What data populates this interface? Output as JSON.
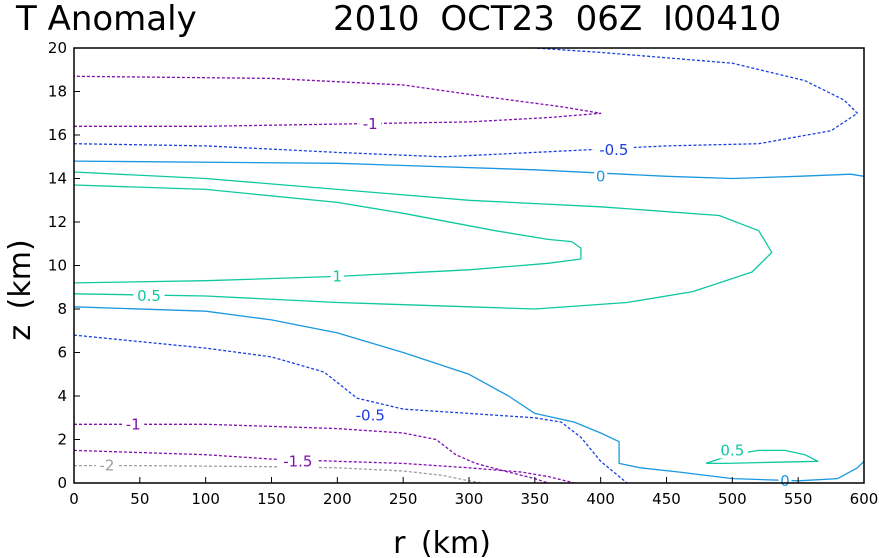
{
  "chart_data": {
    "type": "contour",
    "title_left": "T Anomaly",
    "title_right": "2010 OCT23 06Z   I00410",
    "xlabel": "r (km)",
    "ylabel": "z (km)",
    "xlim": [
      0,
      600
    ],
    "ylim": [
      0,
      20
    ],
    "xticks": [
      "0",
      "50",
      "100",
      "150",
      "200",
      "250",
      "300",
      "350",
      "400",
      "450",
      "500",
      "550",
      "600"
    ],
    "yticks": [
      "0",
      "2",
      "4",
      "6",
      "8",
      "10",
      "12",
      "14",
      "16",
      "18",
      "20"
    ],
    "colors": {
      "pos1": "#10c8a0",
      "pos05": "#10c8a0",
      "zero": "#1a98e0",
      "neg05": "#1a40e0",
      "neg1": "#8010b0",
      "neg15": "#8010b0",
      "neg2": "#a0a0a0"
    },
    "contours": [
      {
        "id": "c-pos1",
        "level": 1,
        "label": "1",
        "color_key": "pos1",
        "dashed": false,
        "points": [
          [
            0,
            9.2
          ],
          [
            100,
            9.3
          ],
          [
            200,
            9.5
          ],
          [
            300,
            9.8
          ],
          [
            360,
            10.1
          ],
          [
            385,
            10.3
          ],
          [
            385,
            10.8
          ],
          [
            378,
            11.1
          ],
          [
            360,
            11.2
          ],
          [
            320,
            11.6
          ],
          [
            250,
            12.4
          ],
          [
            200,
            12.9
          ],
          [
            100,
            13.5
          ],
          [
            0,
            13.7
          ]
        ],
        "label_at": [
          200,
          9.5
        ]
      },
      {
        "id": "c-pos05",
        "level": 0.5,
        "label": "0.5",
        "color_key": "pos05",
        "dashed": false,
        "points": [
          [
            0,
            8.7
          ],
          [
            100,
            8.6
          ],
          [
            200,
            8.3
          ],
          [
            300,
            8.1
          ],
          [
            350,
            8.0
          ],
          [
            420,
            8.3
          ],
          [
            470,
            8.8
          ],
          [
            515,
            9.7
          ],
          [
            530,
            10.6
          ],
          [
            520,
            11.6
          ],
          [
            490,
            12.3
          ],
          [
            400,
            12.7
          ],
          [
            300,
            13.0
          ],
          [
            200,
            13.5
          ],
          [
            100,
            14.0
          ],
          [
            0,
            14.3
          ]
        ],
        "label_at": [
          57,
          8.6
        ]
      },
      {
        "id": "c-pos05-small",
        "level": 0.5,
        "label": "0.5",
        "color_key": "pos05",
        "dashed": false,
        "points": [
          [
            480,
            0.9
          ],
          [
            500,
            1.3
          ],
          [
            520,
            1.5
          ],
          [
            540,
            1.5
          ],
          [
            555,
            1.3
          ],
          [
            565,
            1.0
          ],
          [
            530,
            0.95
          ],
          [
            495,
            0.9
          ],
          [
            480,
            0.9
          ]
        ],
        "label_at": [
          500,
          1.5
        ]
      },
      {
        "id": "c-zero-upper",
        "level": 0,
        "label": "0",
        "color_key": "zero",
        "dashed": false,
        "points": [
          [
            0,
            14.8
          ],
          [
            200,
            14.7
          ],
          [
            350,
            14.4
          ],
          [
            450,
            14.1
          ],
          [
            500,
            14.0
          ],
          [
            550,
            14.1
          ],
          [
            590,
            14.2
          ],
          [
            600,
            14.1
          ]
        ],
        "label_at": [
          400,
          14.1
        ]
      },
      {
        "id": "c-zero-lower",
        "level": 0,
        "label": "0",
        "color_key": "zero",
        "dashed": false,
        "points": [
          [
            0,
            8.1
          ],
          [
            100,
            7.9
          ],
          [
            150,
            7.5
          ],
          [
            200,
            6.9
          ],
          [
            250,
            6.0
          ],
          [
            300,
            5.0
          ],
          [
            330,
            4.0
          ],
          [
            350,
            3.2
          ],
          [
            380,
            2.8
          ],
          [
            400,
            2.3
          ],
          [
            414,
            1.9
          ],
          [
            414,
            0.9
          ],
          [
            430,
            0.7
          ],
          [
            460,
            0.5
          ],
          [
            500,
            0.2
          ],
          [
            550,
            0.1
          ],
          [
            580,
            0.2
          ],
          [
            595,
            0.7
          ],
          [
            600,
            1.0
          ]
        ],
        "label_at": [
          540,
          0.1
        ]
      },
      {
        "id": "c-neg05-upper",
        "level": -0.5,
        "label": "-0.5",
        "color_key": "neg05",
        "dashed": true,
        "points": [
          [
            0,
            15.6
          ],
          [
            100,
            15.5
          ],
          [
            200,
            15.2
          ],
          [
            280,
            15.0
          ],
          [
            350,
            15.2
          ],
          [
            450,
            15.5
          ],
          [
            520,
            15.6
          ],
          [
            575,
            16.2
          ],
          [
            595,
            17.0
          ],
          [
            585,
            17.6
          ],
          [
            555,
            18.5
          ],
          [
            500,
            19.3
          ],
          [
            400,
            19.8
          ],
          [
            350,
            20.0
          ]
        ],
        "label_at": [
          410,
          15.3
        ]
      },
      {
        "id": "c-neg05-lower",
        "level": -0.5,
        "label": "-0.5",
        "color_key": "neg05",
        "dashed": true,
        "points": [
          [
            0,
            6.8
          ],
          [
            50,
            6.5
          ],
          [
            100,
            6.2
          ],
          [
            150,
            5.8
          ],
          [
            190,
            5.1
          ],
          [
            215,
            3.9
          ],
          [
            250,
            3.4
          ],
          [
            300,
            3.2
          ],
          [
            350,
            3.0
          ],
          [
            370,
            2.8
          ],
          [
            385,
            2.1
          ],
          [
            400,
            1.0
          ],
          [
            420,
            0.0
          ]
        ],
        "label_at": [
          225,
          3.1
        ]
      },
      {
        "id": "c-neg1-upper",
        "level": -1,
        "label": "-1",
        "color_key": "neg1",
        "dashed": true,
        "points": [
          [
            0,
            16.4
          ],
          [
            100,
            16.4
          ],
          [
            200,
            16.5
          ],
          [
            300,
            16.6
          ],
          [
            360,
            16.8
          ],
          [
            400,
            17.0
          ],
          [
            370,
            17.3
          ],
          [
            320,
            17.7
          ],
          [
            250,
            18.3
          ],
          [
            150,
            18.6
          ],
          [
            0,
            18.7
          ]
        ],
        "label_at": [
          225,
          16.5
        ]
      },
      {
        "id": "c-neg1-lower",
        "level": -1,
        "label": "-1",
        "color_key": "neg1",
        "dashed": true,
        "points": [
          [
            0,
            2.7
          ],
          [
            100,
            2.7
          ],
          [
            150,
            2.6
          ],
          [
            200,
            2.5
          ],
          [
            250,
            2.3
          ],
          [
            275,
            2.0
          ],
          [
            290,
            1.3
          ],
          [
            305,
            0.9
          ],
          [
            330,
            0.5
          ],
          [
            350,
            0.2
          ],
          [
            360,
            0.0
          ]
        ],
        "label_at": [
          45,
          2.7
        ]
      },
      {
        "id": "c-neg15",
        "level": -1.5,
        "label": "-1.5",
        "color_key": "neg15",
        "dashed": true,
        "points": [
          [
            0,
            1.5
          ],
          [
            100,
            1.3
          ],
          [
            150,
            1.1
          ],
          [
            200,
            1.0
          ],
          [
            250,
            0.9
          ],
          [
            300,
            0.7
          ],
          [
            340,
            0.5
          ],
          [
            360,
            0.3
          ],
          [
            380,
            0.0
          ]
        ],
        "label_at": [
          170,
          1.0
        ]
      },
      {
        "id": "c-neg2",
        "level": -2,
        "label": "-2",
        "color_key": "neg2",
        "dashed": true,
        "points": [
          [
            0,
            0.8
          ],
          [
            50,
            0.8
          ],
          [
            150,
            0.75
          ],
          [
            200,
            0.7
          ],
          [
            250,
            0.55
          ],
          [
            280,
            0.35
          ],
          [
            300,
            0.1
          ],
          [
            310,
            0.0
          ]
        ],
        "label_at": [
          25,
          0.8
        ]
      }
    ]
  }
}
